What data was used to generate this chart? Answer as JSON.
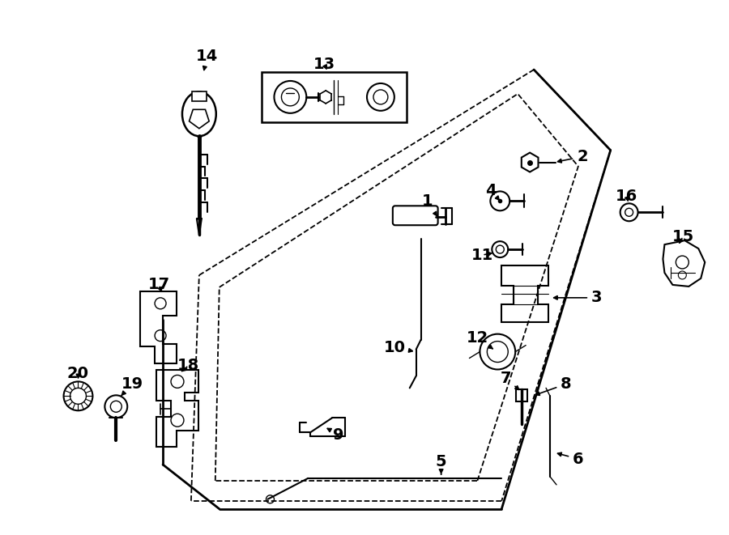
{
  "bg_color": "#ffffff",
  "line_color": "#000000",
  "fig_width": 9.0,
  "fig_height": 6.61,
  "dpi": 100
}
